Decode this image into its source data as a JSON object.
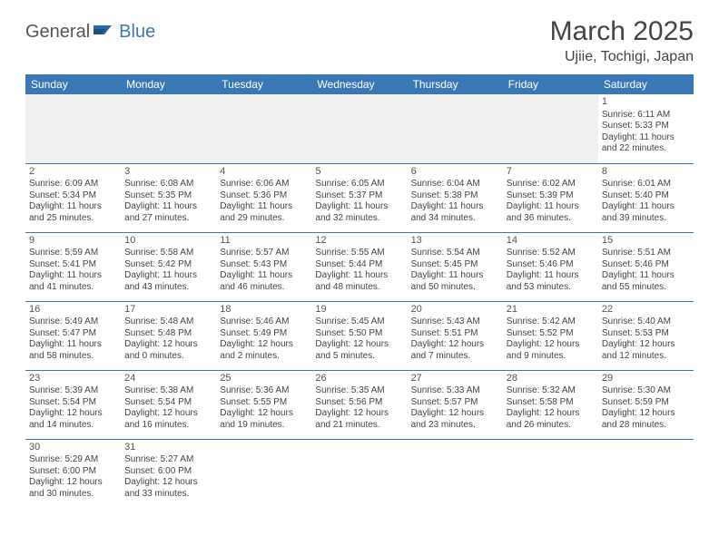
{
  "logo": {
    "part1": "General",
    "part2": "Blue"
  },
  "title": "March 2025",
  "location": "Ujiie, Tochigi, Japan",
  "colors": {
    "header_bg": "#3a78b5",
    "header_text": "#ffffff",
    "border": "#3a78b5",
    "text": "#444444",
    "empty_bg": "#f0f0f0"
  },
  "day_headers": [
    "Sunday",
    "Monday",
    "Tuesday",
    "Wednesday",
    "Thursday",
    "Friday",
    "Saturday"
  ],
  "weeks": [
    [
      null,
      null,
      null,
      null,
      null,
      null,
      {
        "n": "1",
        "sr": "Sunrise: 6:11 AM",
        "ss": "Sunset: 5:33 PM",
        "d1": "Daylight: 11 hours",
        "d2": "and 22 minutes."
      }
    ],
    [
      {
        "n": "2",
        "sr": "Sunrise: 6:09 AM",
        "ss": "Sunset: 5:34 PM",
        "d1": "Daylight: 11 hours",
        "d2": "and 25 minutes."
      },
      {
        "n": "3",
        "sr": "Sunrise: 6:08 AM",
        "ss": "Sunset: 5:35 PM",
        "d1": "Daylight: 11 hours",
        "d2": "and 27 minutes."
      },
      {
        "n": "4",
        "sr": "Sunrise: 6:06 AM",
        "ss": "Sunset: 5:36 PM",
        "d1": "Daylight: 11 hours",
        "d2": "and 29 minutes."
      },
      {
        "n": "5",
        "sr": "Sunrise: 6:05 AM",
        "ss": "Sunset: 5:37 PM",
        "d1": "Daylight: 11 hours",
        "d2": "and 32 minutes."
      },
      {
        "n": "6",
        "sr": "Sunrise: 6:04 AM",
        "ss": "Sunset: 5:38 PM",
        "d1": "Daylight: 11 hours",
        "d2": "and 34 minutes."
      },
      {
        "n": "7",
        "sr": "Sunrise: 6:02 AM",
        "ss": "Sunset: 5:39 PM",
        "d1": "Daylight: 11 hours",
        "d2": "and 36 minutes."
      },
      {
        "n": "8",
        "sr": "Sunrise: 6:01 AM",
        "ss": "Sunset: 5:40 PM",
        "d1": "Daylight: 11 hours",
        "d2": "and 39 minutes."
      }
    ],
    [
      {
        "n": "9",
        "sr": "Sunrise: 5:59 AM",
        "ss": "Sunset: 5:41 PM",
        "d1": "Daylight: 11 hours",
        "d2": "and 41 minutes."
      },
      {
        "n": "10",
        "sr": "Sunrise: 5:58 AM",
        "ss": "Sunset: 5:42 PM",
        "d1": "Daylight: 11 hours",
        "d2": "and 43 minutes."
      },
      {
        "n": "11",
        "sr": "Sunrise: 5:57 AM",
        "ss": "Sunset: 5:43 PM",
        "d1": "Daylight: 11 hours",
        "d2": "and 46 minutes."
      },
      {
        "n": "12",
        "sr": "Sunrise: 5:55 AM",
        "ss": "Sunset: 5:44 PM",
        "d1": "Daylight: 11 hours",
        "d2": "and 48 minutes."
      },
      {
        "n": "13",
        "sr": "Sunrise: 5:54 AM",
        "ss": "Sunset: 5:45 PM",
        "d1": "Daylight: 11 hours",
        "d2": "and 50 minutes."
      },
      {
        "n": "14",
        "sr": "Sunrise: 5:52 AM",
        "ss": "Sunset: 5:46 PM",
        "d1": "Daylight: 11 hours",
        "d2": "and 53 minutes."
      },
      {
        "n": "15",
        "sr": "Sunrise: 5:51 AM",
        "ss": "Sunset: 5:46 PM",
        "d1": "Daylight: 11 hours",
        "d2": "and 55 minutes."
      }
    ],
    [
      {
        "n": "16",
        "sr": "Sunrise: 5:49 AM",
        "ss": "Sunset: 5:47 PM",
        "d1": "Daylight: 11 hours",
        "d2": "and 58 minutes."
      },
      {
        "n": "17",
        "sr": "Sunrise: 5:48 AM",
        "ss": "Sunset: 5:48 PM",
        "d1": "Daylight: 12 hours",
        "d2": "and 0 minutes."
      },
      {
        "n": "18",
        "sr": "Sunrise: 5:46 AM",
        "ss": "Sunset: 5:49 PM",
        "d1": "Daylight: 12 hours",
        "d2": "and 2 minutes."
      },
      {
        "n": "19",
        "sr": "Sunrise: 5:45 AM",
        "ss": "Sunset: 5:50 PM",
        "d1": "Daylight: 12 hours",
        "d2": "and 5 minutes."
      },
      {
        "n": "20",
        "sr": "Sunrise: 5:43 AM",
        "ss": "Sunset: 5:51 PM",
        "d1": "Daylight: 12 hours",
        "d2": "and 7 minutes."
      },
      {
        "n": "21",
        "sr": "Sunrise: 5:42 AM",
        "ss": "Sunset: 5:52 PM",
        "d1": "Daylight: 12 hours",
        "d2": "and 9 minutes."
      },
      {
        "n": "22",
        "sr": "Sunrise: 5:40 AM",
        "ss": "Sunset: 5:53 PM",
        "d1": "Daylight: 12 hours",
        "d2": "and 12 minutes."
      }
    ],
    [
      {
        "n": "23",
        "sr": "Sunrise: 5:39 AM",
        "ss": "Sunset: 5:54 PM",
        "d1": "Daylight: 12 hours",
        "d2": "and 14 minutes."
      },
      {
        "n": "24",
        "sr": "Sunrise: 5:38 AM",
        "ss": "Sunset: 5:54 PM",
        "d1": "Daylight: 12 hours",
        "d2": "and 16 minutes."
      },
      {
        "n": "25",
        "sr": "Sunrise: 5:36 AM",
        "ss": "Sunset: 5:55 PM",
        "d1": "Daylight: 12 hours",
        "d2": "and 19 minutes."
      },
      {
        "n": "26",
        "sr": "Sunrise: 5:35 AM",
        "ss": "Sunset: 5:56 PM",
        "d1": "Daylight: 12 hours",
        "d2": "and 21 minutes."
      },
      {
        "n": "27",
        "sr": "Sunrise: 5:33 AM",
        "ss": "Sunset: 5:57 PM",
        "d1": "Daylight: 12 hours",
        "d2": "and 23 minutes."
      },
      {
        "n": "28",
        "sr": "Sunrise: 5:32 AM",
        "ss": "Sunset: 5:58 PM",
        "d1": "Daylight: 12 hours",
        "d2": "and 26 minutes."
      },
      {
        "n": "29",
        "sr": "Sunrise: 5:30 AM",
        "ss": "Sunset: 5:59 PM",
        "d1": "Daylight: 12 hours",
        "d2": "and 28 minutes."
      }
    ],
    [
      {
        "n": "30",
        "sr": "Sunrise: 5:29 AM",
        "ss": "Sunset: 6:00 PM",
        "d1": "Daylight: 12 hours",
        "d2": "and 30 minutes."
      },
      {
        "n": "31",
        "sr": "Sunrise: 5:27 AM",
        "ss": "Sunset: 6:00 PM",
        "d1": "Daylight: 12 hours",
        "d2": "and 33 minutes."
      },
      null,
      null,
      null,
      null,
      null
    ]
  ]
}
